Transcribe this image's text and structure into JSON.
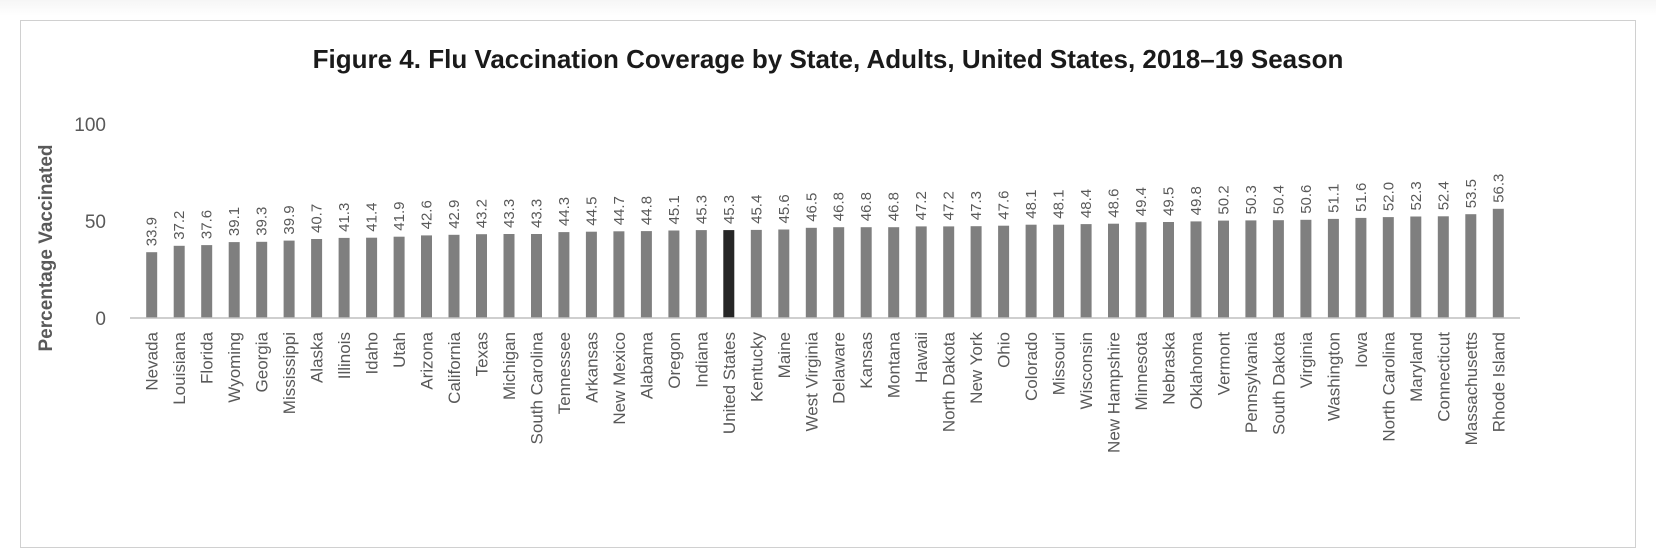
{
  "chart_data": {
    "type": "bar",
    "title": "Figure 4. Flu Vaccination Coverage by State, Adults, United States, 2018–19 Season",
    "ylabel": "Percentage Vaccinated",
    "xlabel": "",
    "ylim": [
      0,
      100
    ],
    "yticks": [
      0,
      50,
      100
    ],
    "grid": false,
    "highlight": "United States",
    "colors": {
      "bar": "#7f7f7f",
      "highlight": "#262626",
      "axis": "#bfbfbf",
      "text": "#595959"
    },
    "categories": [
      "Nevada",
      "Louisiana",
      "Florida",
      "Wyoming",
      "Georgia",
      "Mississippi",
      "Alaska",
      "Illinois",
      "Idaho",
      "Utah",
      "Arizona",
      "California",
      "Texas",
      "Michigan",
      "South Carolina",
      "Tennessee",
      "Arkansas",
      "New Mexico",
      "Alabama",
      "Oregon",
      "Indiana",
      "United States",
      "Kentucky",
      "Maine",
      "West Virginia",
      "Delaware",
      "Kansas",
      "Montana",
      "Hawaii",
      "North Dakota",
      "New York",
      "Ohio",
      "Colorado",
      "Missouri",
      "Wisconsin",
      "New Hampshire",
      "Minnesota",
      "Nebraska",
      "Oklahoma",
      "Vermont",
      "Pennsylvania",
      "South Dakota",
      "Virginia",
      "Washington",
      "Iowa",
      "North Carolina",
      "Maryland",
      "Connecticut",
      "Massachusetts",
      "Rhode Island"
    ],
    "values": [
      33.9,
      37.2,
      37.6,
      39.1,
      39.3,
      39.9,
      40.7,
      41.3,
      41.4,
      41.9,
      42.6,
      42.9,
      43.2,
      43.3,
      43.3,
      44.3,
      44.5,
      44.7,
      44.8,
      45.1,
      45.3,
      45.3,
      45.4,
      45.6,
      46.5,
      46.8,
      46.8,
      46.8,
      47.2,
      47.2,
      47.3,
      47.6,
      48.1,
      48.1,
      48.4,
      48.6,
      49.4,
      49.5,
      49.8,
      50.2,
      50.3,
      50.4,
      50.6,
      51.1,
      51.6,
      52.0,
      52.3,
      52.4,
      53.5,
      56.3
    ],
    "value_labels": [
      "33.9",
      "37.2",
      "37.6",
      "39.1",
      "39.3",
      "39.9",
      "40.7",
      "41.3",
      "41.4",
      "41.9",
      "42.6",
      "42.9",
      "43.2",
      "43.3",
      "43.3",
      "44.3",
      "44.5",
      "44.7",
      "44.8",
      "45.1",
      "45.3",
      "45.3",
      "45.4",
      "45.6",
      "46.5",
      "46.8",
      "46.8",
      "46.8",
      "47.2",
      "47.2",
      "47.3",
      "47.6",
      "48.1",
      "48.1",
      "48.4",
      "48.6",
      "49.4",
      "49.5",
      "49.8",
      "50.2",
      "50.3",
      "50.4",
      "50.6",
      "51.1",
      "51.6",
      "52.0",
      "52.3",
      "52.4",
      "53.5",
      "56.3"
    ]
  }
}
